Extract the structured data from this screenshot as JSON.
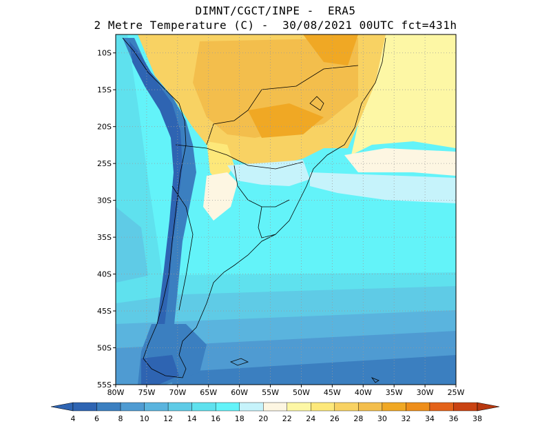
{
  "header": {
    "line1": "DIMNT/CGCT/INPE -  ERA5",
    "line2": "2 Metre Temperature (C) -  30/08/2021 00UTC fct=431h"
  },
  "map": {
    "lon_range": [
      -80,
      -25
    ],
    "lat_range": [
      -55,
      -7.5
    ],
    "lon_ticks": [
      -80,
      -75,
      -70,
      -65,
      -60,
      -55,
      -50,
      -45,
      -40,
      -35,
      -30,
      -25
    ],
    "lon_labels": [
      "80W",
      "75W",
      "70W",
      "65W",
      "60W",
      "55W",
      "50W",
      "45W",
      "40W",
      "35W",
      "30W",
      "25W"
    ],
    "lat_ticks": [
      -10,
      -15,
      -20,
      -25,
      -30,
      -35,
      -40,
      -45,
      -50,
      -55
    ],
    "lat_labels": [
      "10S",
      "15S",
      "20S",
      "25S",
      "30S",
      "35S",
      "40S",
      "45S",
      "50S",
      "55S"
    ],
    "grid": true
  },
  "colorbar": {
    "levels": [
      "4",
      "6",
      "8",
      "10",
      "12",
      "14",
      "16",
      "18",
      "20",
      "22",
      "24",
      "26",
      "28",
      "30",
      "32",
      "34",
      "36",
      "38"
    ],
    "colors": [
      "#2e64b2",
      "#3b7fc0",
      "#4f9bd2",
      "#5ab4de",
      "#5fcbe6",
      "#5fe1ee",
      "#63f3f9",
      "#c6f3fb",
      "#fdf6e2",
      "#fdf7a5",
      "#fde87a",
      "#f8d263",
      "#f3be4c",
      "#f0a824",
      "#ee8e1a",
      "#e3631a",
      "#c94312"
    ],
    "low_color": "#2e64b2",
    "high_color": "#b8380f"
  }
}
